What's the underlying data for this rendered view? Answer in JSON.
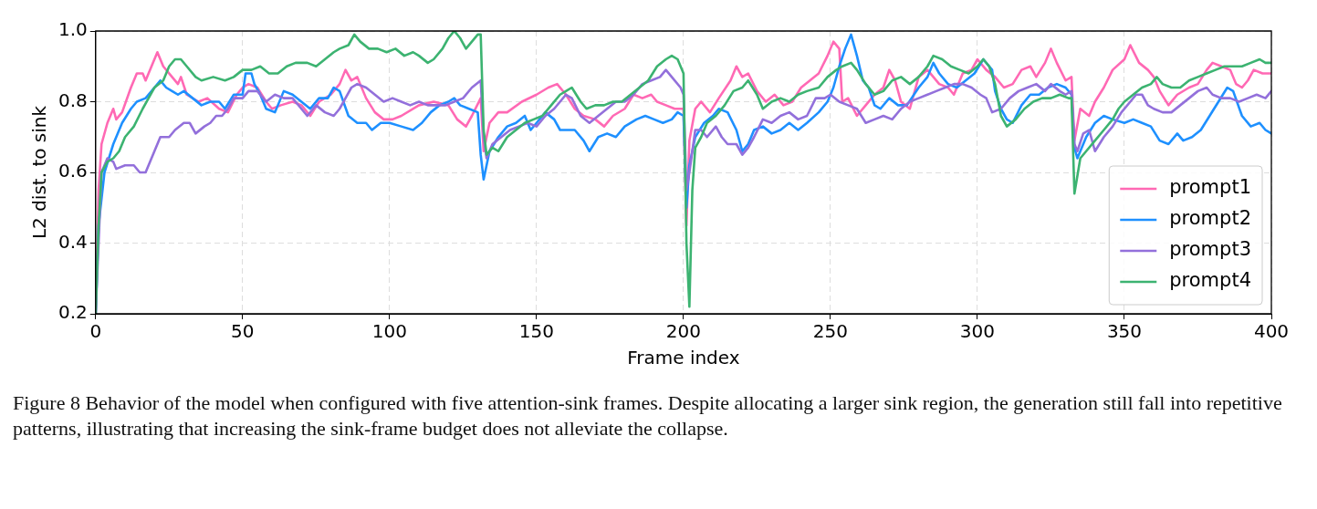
{
  "chart_data": {
    "type": "line",
    "xlabel": "Frame index",
    "ylabel": "L2 dist. to sink",
    "xlim": [
      0,
      400
    ],
    "xticks": [
      0,
      50,
      100,
      150,
      200,
      250,
      300,
      350,
      400
    ],
    "ylim": [
      0.2,
      1.0
    ],
    "yticks": [
      0.2,
      0.4,
      0.6,
      0.8,
      {
        "value": 1.0,
        "label": "1.0"
      }
    ],
    "grid": true,
    "legend": "bottom right",
    "marker": "none",
    "line_style": "solid",
    "annotations": [
      "Figure 8 Behavior of the model when configured with five attention-sink frames. Despite allocating a larger sink region, the generation still fall into repetitive patterns, illustrating that increasing the sink-frame budget does not alleviate the collapse."
    ],
    "series": [
      {
        "name": "prompt1",
        "color": "#ff69b4",
        "x": [
          0,
          1,
          2,
          4,
          6,
          7,
          9,
          12,
          14,
          16,
          17,
          19,
          21,
          23,
          26,
          28,
          29,
          31,
          35,
          38,
          42,
          45,
          48,
          50,
          52,
          55,
          58,
          60,
          63,
          67,
          70,
          73,
          76,
          80,
          83,
          85,
          87,
          89,
          92,
          95,
          98,
          101,
          104,
          110,
          115,
          120,
          123,
          126,
          128,
          131,
          132,
          134,
          137,
          140,
          145,
          150,
          154,
          157,
          160,
          163,
          166,
          170,
          173,
          176,
          180,
          183,
          186,
          189,
          191,
          194,
          197,
          200,
          201,
          202,
          204,
          206,
          209,
          212,
          216,
          218,
          220,
          222,
          225,
          228,
          231,
          234,
          237,
          240,
          243,
          246,
          249,
          251,
          253,
          254,
          256,
          259,
          262,
          265,
          268,
          270,
          272,
          274,
          277,
          280,
          283,
          285,
          287,
          290,
          292,
          295,
          298,
          300,
          303,
          306,
          309,
          312,
          315,
          318,
          320,
          323,
          325,
          327,
          330,
          332,
          333,
          335,
          338,
          340,
          343,
          346,
          350,
          352,
          355,
          358,
          360,
          362,
          365,
          368,
          372,
          375,
          378,
          380,
          383,
          386,
          388,
          390,
          392,
          394,
          397,
          400
        ],
        "values": [
          0.2,
          0.55,
          0.68,
          0.74,
          0.78,
          0.75,
          0.77,
          0.84,
          0.88,
          0.88,
          0.86,
          0.9,
          0.94,
          0.9,
          0.87,
          0.85,
          0.87,
          0.82,
          0.8,
          0.81,
          0.78,
          0.77,
          0.82,
          0.84,
          0.85,
          0.84,
          0.8,
          0.78,
          0.79,
          0.8,
          0.79,
          0.76,
          0.8,
          0.82,
          0.85,
          0.89,
          0.86,
          0.87,
          0.81,
          0.77,
          0.75,
          0.75,
          0.76,
          0.79,
          0.8,
          0.79,
          0.75,
          0.73,
          0.76,
          0.81,
          0.66,
          0.74,
          0.77,
          0.77,
          0.8,
          0.82,
          0.84,
          0.85,
          0.82,
          0.78,
          0.76,
          0.75,
          0.73,
          0.76,
          0.78,
          0.82,
          0.81,
          0.82,
          0.8,
          0.79,
          0.78,
          0.78,
          0.45,
          0.69,
          0.78,
          0.8,
          0.77,
          0.81,
          0.86,
          0.9,
          0.87,
          0.88,
          0.83,
          0.8,
          0.82,
          0.79,
          0.8,
          0.84,
          0.86,
          0.88,
          0.93,
          0.97,
          0.95,
          0.8,
          0.81,
          0.76,
          0.79,
          0.82,
          0.84,
          0.89,
          0.86,
          0.8,
          0.78,
          0.87,
          0.89,
          0.87,
          0.85,
          0.84,
          0.82,
          0.88,
          0.89,
          0.92,
          0.89,
          0.87,
          0.84,
          0.85,
          0.89,
          0.9,
          0.87,
          0.91,
          0.95,
          0.91,
          0.86,
          0.87,
          0.69,
          0.78,
          0.76,
          0.8,
          0.84,
          0.89,
          0.92,
          0.96,
          0.91,
          0.89,
          0.87,
          0.83,
          0.79,
          0.82,
          0.84,
          0.85,
          0.89,
          0.91,
          0.9,
          0.89,
          0.85,
          0.84,
          0.86,
          0.89,
          0.88,
          0.88
        ]
      },
      {
        "name": "prompt2",
        "color": "#1e90ff",
        "x": [
          0,
          1,
          3,
          6,
          9,
          12,
          14,
          17,
          20,
          22,
          24,
          26,
          28,
          30,
          33,
          36,
          39,
          42,
          44,
          47,
          50,
          51,
          53,
          54,
          56,
          58,
          61,
          64,
          67,
          70,
          73,
          76,
          79,
          81,
          83,
          86,
          89,
          92,
          94,
          97,
          100,
          104,
          108,
          111,
          114,
          117,
          120,
          122,
          124,
          127,
          130,
          131,
          132,
          134,
          137,
          140,
          143,
          146,
          148,
          150,
          153,
          156,
          158,
          161,
          163,
          166,
          168,
          171,
          174,
          177,
          180,
          184,
          187,
          190,
          193,
          196,
          198,
          200,
          201,
          202,
          204,
          207,
          210,
          212,
          215,
          218,
          220,
          222,
          224,
          227,
          230,
          233,
          236,
          239,
          242,
          246,
          249,
          251,
          253,
          255,
          257,
          259,
          261,
          263,
          265,
          267,
          270,
          273,
          276,
          280,
          283,
          285,
          287,
          290,
          293,
          296,
          299,
          302,
          305,
          306,
          308,
          310,
          312,
          315,
          318,
          321,
          324,
          327,
          330,
          332,
          333,
          334,
          337,
          340,
          343,
          346,
          350,
          353,
          356,
          359,
          362,
          365,
          368,
          370,
          373,
          376,
          379,
          382,
          385,
          387,
          390,
          393,
          396,
          398,
          400
        ],
        "values": [
          0.2,
          0.45,
          0.6,
          0.68,
          0.74,
          0.78,
          0.8,
          0.81,
          0.84,
          0.86,
          0.84,
          0.83,
          0.82,
          0.83,
          0.81,
          0.79,
          0.8,
          0.8,
          0.78,
          0.82,
          0.82,
          0.88,
          0.88,
          0.85,
          0.82,
          0.78,
          0.77,
          0.83,
          0.82,
          0.8,
          0.78,
          0.81,
          0.81,
          0.84,
          0.83,
          0.76,
          0.74,
          0.74,
          0.72,
          0.74,
          0.74,
          0.73,
          0.72,
          0.74,
          0.77,
          0.79,
          0.8,
          0.81,
          0.79,
          0.78,
          0.77,
          0.65,
          0.58,
          0.66,
          0.7,
          0.73,
          0.74,
          0.76,
          0.72,
          0.74,
          0.77,
          0.75,
          0.72,
          0.72,
          0.72,
          0.69,
          0.66,
          0.7,
          0.71,
          0.7,
          0.73,
          0.75,
          0.76,
          0.75,
          0.74,
          0.75,
          0.77,
          0.76,
          0.5,
          0.62,
          0.7,
          0.74,
          0.76,
          0.78,
          0.77,
          0.72,
          0.66,
          0.68,
          0.72,
          0.73,
          0.71,
          0.72,
          0.74,
          0.72,
          0.74,
          0.77,
          0.8,
          0.84,
          0.9,
          0.95,
          0.99,
          0.93,
          0.86,
          0.84,
          0.79,
          0.78,
          0.81,
          0.79,
          0.79,
          0.84,
          0.87,
          0.91,
          0.88,
          0.85,
          0.84,
          0.86,
          0.88,
          0.92,
          0.89,
          0.83,
          0.78,
          0.75,
          0.74,
          0.79,
          0.82,
          0.82,
          0.84,
          0.85,
          0.84,
          0.82,
          0.67,
          0.64,
          0.7,
          0.74,
          0.76,
          0.75,
          0.74,
          0.75,
          0.74,
          0.73,
          0.69,
          0.68,
          0.71,
          0.69,
          0.7,
          0.72,
          0.76,
          0.8,
          0.84,
          0.83,
          0.76,
          0.73,
          0.74,
          0.72,
          0.71
        ]
      },
      {
        "name": "prompt3",
        "color": "#9370db",
        "x": [
          0,
          2,
          4,
          6,
          7,
          10,
          13,
          15,
          17,
          20,
          22,
          25,
          27,
          30,
          32,
          34,
          37,
          39,
          41,
          43,
          45,
          47,
          50,
          52,
          55,
          58,
          61,
          64,
          67,
          70,
          72,
          75,
          78,
          81,
          83,
          85,
          87,
          89,
          92,
          95,
          98,
          101,
          104,
          107,
          110,
          113,
          116,
          119,
          122,
          125,
          128,
          131,
          132,
          133,
          135,
          138,
          141,
          144,
          147,
          150,
          153,
          156,
          158,
          160,
          162,
          165,
          168,
          171,
          174,
          177,
          180,
          183,
          186,
          189,
          192,
          194,
          196,
          199,
          200,
          201,
          202,
          204,
          206,
          208,
          211,
          213,
          215,
          218,
          220,
          222,
          224,
          227,
          230,
          233,
          236,
          239,
          242,
          245,
          248,
          250,
          253,
          256,
          259,
          262,
          265,
          268,
          271,
          274,
          277,
          280,
          283,
          286,
          289,
          292,
          295,
          298,
          301,
          303,
          305,
          308,
          311,
          314,
          317,
          320,
          323,
          325,
          328,
          330,
          332,
          333,
          334,
          336,
          338,
          340,
          343,
          346,
          349,
          352,
          354,
          356,
          358,
          360,
          363,
          366,
          369,
          372,
          375,
          378,
          380,
          383,
          386,
          389,
          392,
          395,
          398,
          400
        ],
        "values": [
          0.2,
          0.6,
          0.64,
          0.63,
          0.61,
          0.62,
          0.62,
          0.6,
          0.6,
          0.66,
          0.7,
          0.7,
          0.72,
          0.74,
          0.74,
          0.71,
          0.73,
          0.74,
          0.76,
          0.76,
          0.78,
          0.81,
          0.81,
          0.83,
          0.83,
          0.8,
          0.82,
          0.81,
          0.81,
          0.78,
          0.76,
          0.79,
          0.77,
          0.76,
          0.78,
          0.81,
          0.84,
          0.85,
          0.84,
          0.82,
          0.8,
          0.81,
          0.8,
          0.79,
          0.8,
          0.79,
          0.79,
          0.79,
          0.8,
          0.81,
          0.84,
          0.86,
          0.7,
          0.64,
          0.68,
          0.7,
          0.72,
          0.73,
          0.74,
          0.73,
          0.76,
          0.78,
          0.8,
          0.82,
          0.81,
          0.76,
          0.74,
          0.76,
          0.78,
          0.8,
          0.8,
          0.82,
          0.85,
          0.86,
          0.87,
          0.89,
          0.87,
          0.84,
          0.82,
          0.55,
          0.6,
          0.72,
          0.72,
          0.7,
          0.73,
          0.7,
          0.68,
          0.68,
          0.65,
          0.67,
          0.7,
          0.75,
          0.74,
          0.76,
          0.77,
          0.75,
          0.76,
          0.81,
          0.81,
          0.82,
          0.8,
          0.79,
          0.78,
          0.74,
          0.75,
          0.76,
          0.75,
          0.78,
          0.8,
          0.81,
          0.82,
          0.83,
          0.84,
          0.85,
          0.85,
          0.84,
          0.82,
          0.81,
          0.77,
          0.78,
          0.81,
          0.83,
          0.84,
          0.85,
          0.83,
          0.85,
          0.83,
          0.82,
          0.83,
          0.68,
          0.66,
          0.71,
          0.72,
          0.66,
          0.7,
          0.73,
          0.77,
          0.8,
          0.82,
          0.82,
          0.79,
          0.78,
          0.77,
          0.77,
          0.79,
          0.81,
          0.83,
          0.84,
          0.82,
          0.81,
          0.81,
          0.8,
          0.81,
          0.82,
          0.81,
          0.83
        ]
      },
      {
        "name": "prompt4",
        "color": "#3cb371",
        "x": [
          0,
          1,
          2,
          4,
          6,
          8,
          10,
          13,
          16,
          18,
          20,
          23,
          25,
          27,
          29,
          31,
          34,
          36,
          40,
          44,
          47,
          50,
          53,
          56,
          59,
          62,
          65,
          68,
          72,
          75,
          78,
          81,
          83,
          86,
          88,
          90,
          93,
          96,
          99,
          102,
          105,
          108,
          110,
          113,
          115,
          118,
          120,
          122,
          124,
          126,
          128,
          130,
          131,
          132,
          133,
          135,
          137,
          140,
          143,
          146,
          149,
          152,
          155,
          158,
          160,
          162,
          165,
          167,
          170,
          173,
          176,
          179,
          182,
          185,
          188,
          191,
          194,
          196,
          198,
          200,
          201,
          202,
          203,
          204,
          206,
          208,
          211,
          214,
          217,
          220,
          222,
          225,
          227,
          230,
          233,
          236,
          239,
          242,
          246,
          249,
          252,
          254,
          257,
          259,
          262,
          265,
          268,
          271,
          274,
          277,
          280,
          283,
          285,
          288,
          291,
          294,
          297,
          300,
          302,
          304,
          306,
          308,
          310,
          313,
          316,
          319,
          322,
          325,
          328,
          331,
          332,
          333,
          335,
          337,
          340,
          343,
          346,
          348,
          350,
          353,
          356,
          359,
          361,
          363,
          366,
          369,
          372,
          375,
          378,
          381,
          384,
          387,
          390,
          393,
          396,
          398,
          400
        ],
        "values": [
          0.2,
          0.45,
          0.6,
          0.63,
          0.64,
          0.66,
          0.7,
          0.73,
          0.78,
          0.81,
          0.84,
          0.86,
          0.9,
          0.92,
          0.92,
          0.9,
          0.87,
          0.86,
          0.87,
          0.86,
          0.87,
          0.89,
          0.89,
          0.9,
          0.88,
          0.88,
          0.9,
          0.91,
          0.91,
          0.9,
          0.92,
          0.94,
          0.95,
          0.96,
          0.99,
          0.97,
          0.95,
          0.95,
          0.94,
          0.95,
          0.93,
          0.94,
          0.93,
          0.91,
          0.92,
          0.95,
          0.98,
          1.0,
          0.98,
          0.95,
          0.97,
          0.99,
          0.99,
          0.72,
          0.65,
          0.67,
          0.66,
          0.7,
          0.72,
          0.74,
          0.75,
          0.76,
          0.79,
          0.82,
          0.83,
          0.84,
          0.8,
          0.78,
          0.79,
          0.79,
          0.8,
          0.8,
          0.82,
          0.84,
          0.86,
          0.9,
          0.92,
          0.93,
          0.92,
          0.88,
          0.4,
          0.22,
          0.55,
          0.67,
          0.7,
          0.74,
          0.76,
          0.79,
          0.83,
          0.84,
          0.86,
          0.82,
          0.78,
          0.8,
          0.81,
          0.8,
          0.82,
          0.83,
          0.84,
          0.87,
          0.89,
          0.9,
          0.91,
          0.89,
          0.85,
          0.82,
          0.83,
          0.86,
          0.87,
          0.85,
          0.87,
          0.9,
          0.93,
          0.92,
          0.9,
          0.89,
          0.88,
          0.9,
          0.92,
          0.9,
          0.85,
          0.76,
          0.73,
          0.75,
          0.78,
          0.8,
          0.81,
          0.81,
          0.82,
          0.81,
          0.81,
          0.54,
          0.64,
          0.66,
          0.69,
          0.72,
          0.75,
          0.78,
          0.8,
          0.82,
          0.84,
          0.85,
          0.87,
          0.85,
          0.84,
          0.84,
          0.86,
          0.87,
          0.88,
          0.89,
          0.9,
          0.9,
          0.9,
          0.91,
          0.92,
          0.91,
          0.91
        ]
      }
    ]
  }
}
